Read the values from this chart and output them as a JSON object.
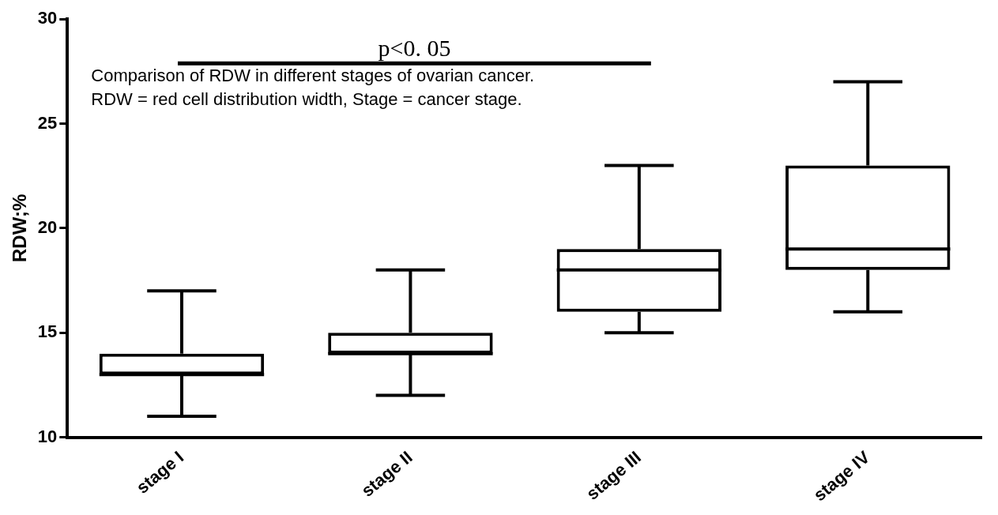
{
  "chart_data": {
    "type": "box",
    "ylabel": "RDW;%",
    "categories": [
      "stage I",
      "stage II",
      "stage III",
      "stage IV"
    ],
    "boxes": [
      {
        "low": 11,
        "q1": 13,
        "median": 13,
        "q3": 14,
        "high": 17
      },
      {
        "low": 12,
        "q1": 14,
        "median": 14,
        "q3": 15,
        "high": 18
      },
      {
        "low": 15,
        "q1": 16,
        "median": 18,
        "q3": 19,
        "high": 23
      },
      {
        "low": 16,
        "q1": 18,
        "median": 19,
        "q3": 23,
        "high": 27
      }
    ],
    "color": "#000000",
    "ylim": [
      10,
      30
    ],
    "yticks": [
      10,
      15,
      20,
      25,
      30
    ],
    "grid": false,
    "legend": false,
    "annotations": [
      "p<0. 05",
      "Comparison of RDW in different stages of ovarian cancer.",
      "RDW = red cell distribution width, Stage = cancer stage."
    ]
  }
}
